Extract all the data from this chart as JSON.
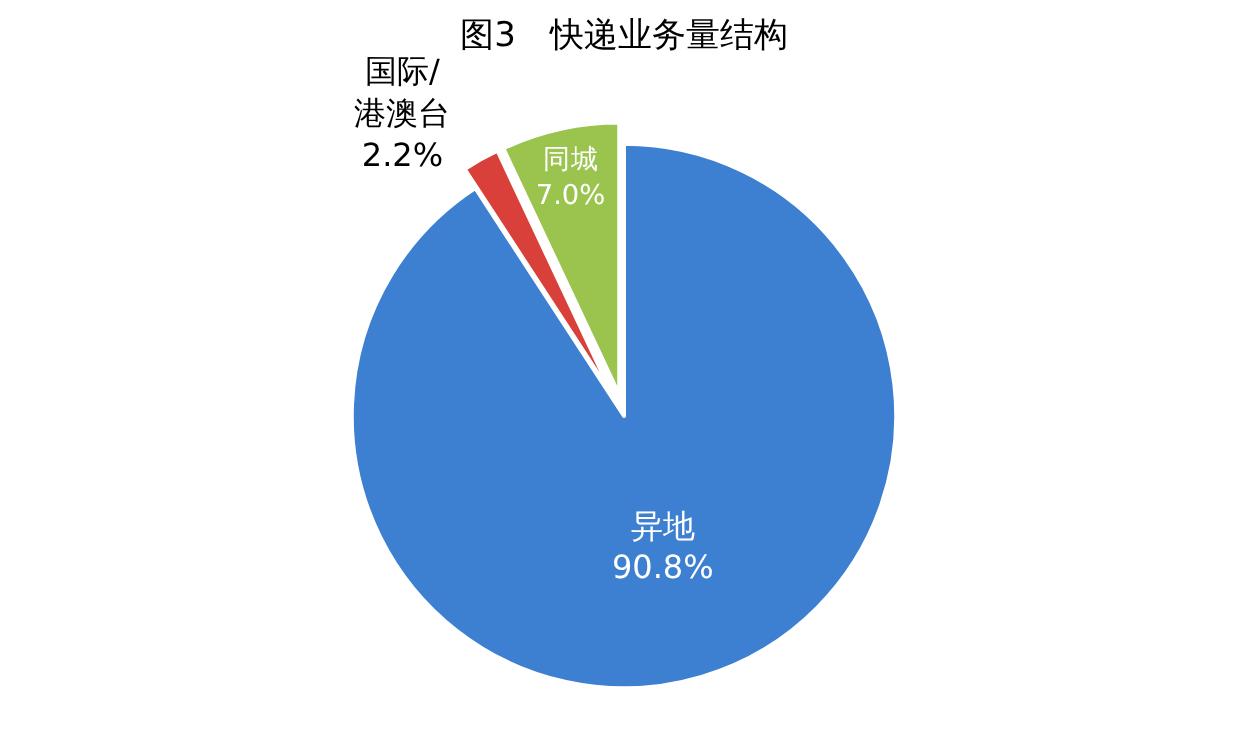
{
  "chart_data": {
    "type": "pie",
    "title": "图3　快递业务量结构",
    "categories": [
      "异地",
      "国际/\n港澳台",
      "同城"
    ],
    "values": [
      90.8,
      2.2,
      7.0
    ],
    "value_labels": [
      "90.8%",
      "2.2%",
      "7.0%"
    ],
    "colors": [
      "#3d7fd1",
      "#d9403a",
      "#9bc44f"
    ],
    "legend": false
  }
}
